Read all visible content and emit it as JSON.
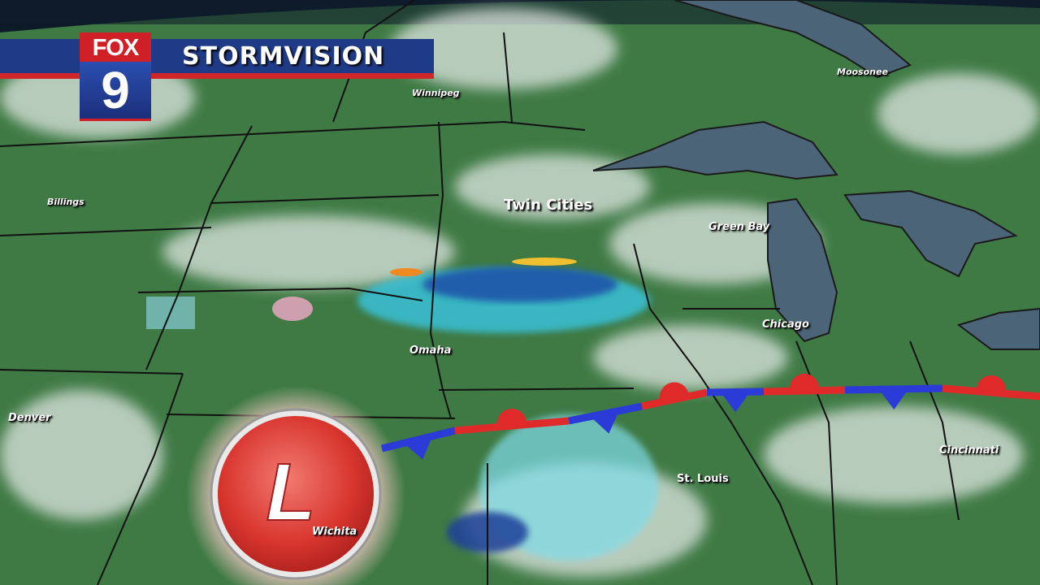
{
  "broadcast": {
    "station_logo_top": "FOX",
    "station_logo_number": "9",
    "title": "STORMVISION"
  },
  "map": {
    "pressure_center": {
      "symbol": "L",
      "type": "low",
      "color": "#e0433c"
    },
    "front": {
      "type": "stationary",
      "warm_color": "#e02a2a",
      "cold_color": "#2b3bd8"
    },
    "cities": [
      {
        "name": "Moosonee"
      },
      {
        "name": "Winnipeg"
      },
      {
        "name": "Billings"
      },
      {
        "name": "Twin Cities"
      },
      {
        "name": "Green Bay"
      },
      {
        "name": "Chicago"
      },
      {
        "name": "Omaha"
      },
      {
        "name": "Denver"
      },
      {
        "name": "St. Louis"
      },
      {
        "name": "Cincinnati"
      },
      {
        "name": "Wichita"
      }
    ]
  }
}
